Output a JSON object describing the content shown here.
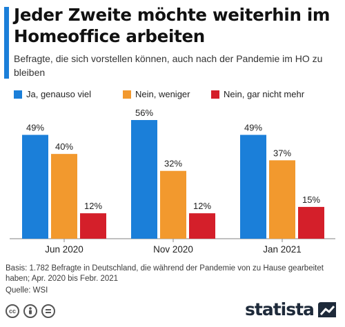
{
  "title": "Jeder Zweite möchte weiterhin im Homeoffice arbeiten",
  "subtitle": "Befragte, die sich vorstellen können, auch nach der Pandemie im HO zu bleiben",
  "colors": {
    "accent": "#1b7fd9",
    "series": [
      "#1b7fd9",
      "#f2992e",
      "#d41f2a"
    ]
  },
  "chart_data": {
    "type": "bar",
    "title": "Jeder Zweite möchte weiterhin im Homeoffice arbeiten",
    "subtitle": "Befragte, die sich vorstellen können, auch nach der Pandemie im HO zu bleiben",
    "categories": [
      "Jun 2020",
      "Nov 2020",
      "Jan 2021"
    ],
    "series": [
      {
        "name": "Ja, genauso viel",
        "values": [
          49,
          56,
          49
        ],
        "labels": [
          "49%",
          "56%",
          "49%"
        ]
      },
      {
        "name": "Nein, weniger",
        "values": [
          40,
          32,
          37
        ],
        "labels": [
          "40%",
          "32%",
          "37%"
        ]
      },
      {
        "name": "Nein, gar nicht mehr",
        "values": [
          12,
          12,
          15
        ],
        "labels": [
          "12%",
          "12%",
          "15%"
        ]
      }
    ],
    "unit": "%",
    "ylim": [
      0,
      56
    ],
    "grid": false,
    "legend": "top"
  },
  "footnote": "Basis: 1.782 Befragte in Deutschland, die während der Pandemie von zu Hause gearbeitet haben; Apr. 2020 bis Febr. 2021",
  "source": "Quelle: WSI",
  "license_icons": [
    "cc-icon",
    "attribution-icon",
    "no-derivatives-icon"
  ],
  "brand": "statista"
}
